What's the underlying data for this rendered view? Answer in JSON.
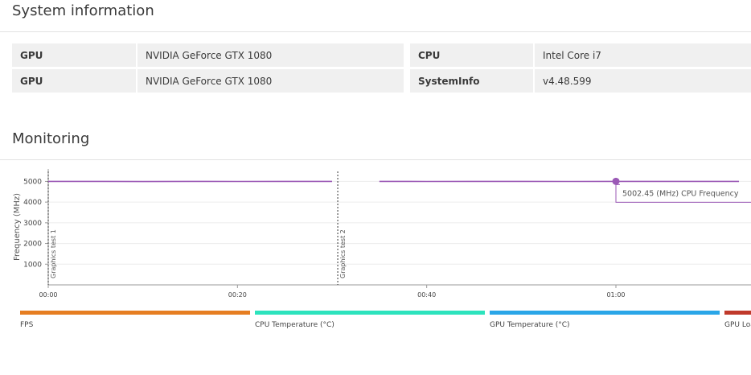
{
  "system_info": {
    "title": "System information",
    "left_rows": [
      {
        "label": "GPU",
        "value": "NVIDIA GeForce GTX 1080"
      },
      {
        "label": "GPU",
        "value": "NVIDIA GeForce GTX 1080"
      }
    ],
    "right_rows": [
      {
        "label": "CPU",
        "value": "Intel Core i7"
      },
      {
        "label": "SystemInfo",
        "value": "v4.48.599"
      }
    ]
  },
  "monitoring": {
    "title": "Monitoring"
  },
  "colors": {
    "line": "#9b59b6",
    "fps": "#e67e22",
    "cpu_temp": "#2de3bd",
    "gpu_temp": "#2aa6e8",
    "gpu_load": "#c0392b"
  },
  "chart_data": {
    "type": "line",
    "ylabel": "Frequency (MHz)",
    "xlabel": "",
    "ylim": [
      0,
      5600
    ],
    "xlim": [
      0,
      73
    ],
    "yticks": [
      1000,
      2000,
      3000,
      4000,
      5000
    ],
    "xticks": [
      {
        "value": 0,
        "label": "00:00"
      },
      {
        "value": 20,
        "label": "00:20"
      },
      {
        "value": 40,
        "label": "00:40"
      },
      {
        "value": 60,
        "label": "01:00"
      }
    ],
    "series": [
      {
        "name": "CPU Frequency",
        "x": [
          0,
          5,
          10,
          15,
          20,
          25,
          30,
          30.3,
          35,
          40,
          45,
          50,
          55,
          60,
          65,
          70,
          73
        ],
        "y": [
          5000,
          5000,
          4995,
          5002,
          4998,
          5001,
          5000,
          null,
          5000,
          4998,
          5002,
          5000,
          4999,
          5002.45,
          5003,
          5001,
          5000
        ]
      }
    ],
    "markers": [
      {
        "x": 0,
        "label": "Graphics test 1"
      },
      {
        "x": 30.6,
        "label": "Graphics test 2"
      }
    ],
    "tooltip": {
      "x": 60,
      "y": 5002.45,
      "text": "5002.45 (MHz) CPU Frequency"
    },
    "legend": [
      {
        "label": "FPS",
        "color": "#e67e22"
      },
      {
        "label": "CPU Temperature (°C)",
        "color": "#2de3bd"
      },
      {
        "label": "GPU Temperature (°C)",
        "color": "#2aa6e8"
      },
      {
        "label": "GPU Load (%)",
        "color": "#c0392b"
      }
    ],
    "grid": true
  }
}
